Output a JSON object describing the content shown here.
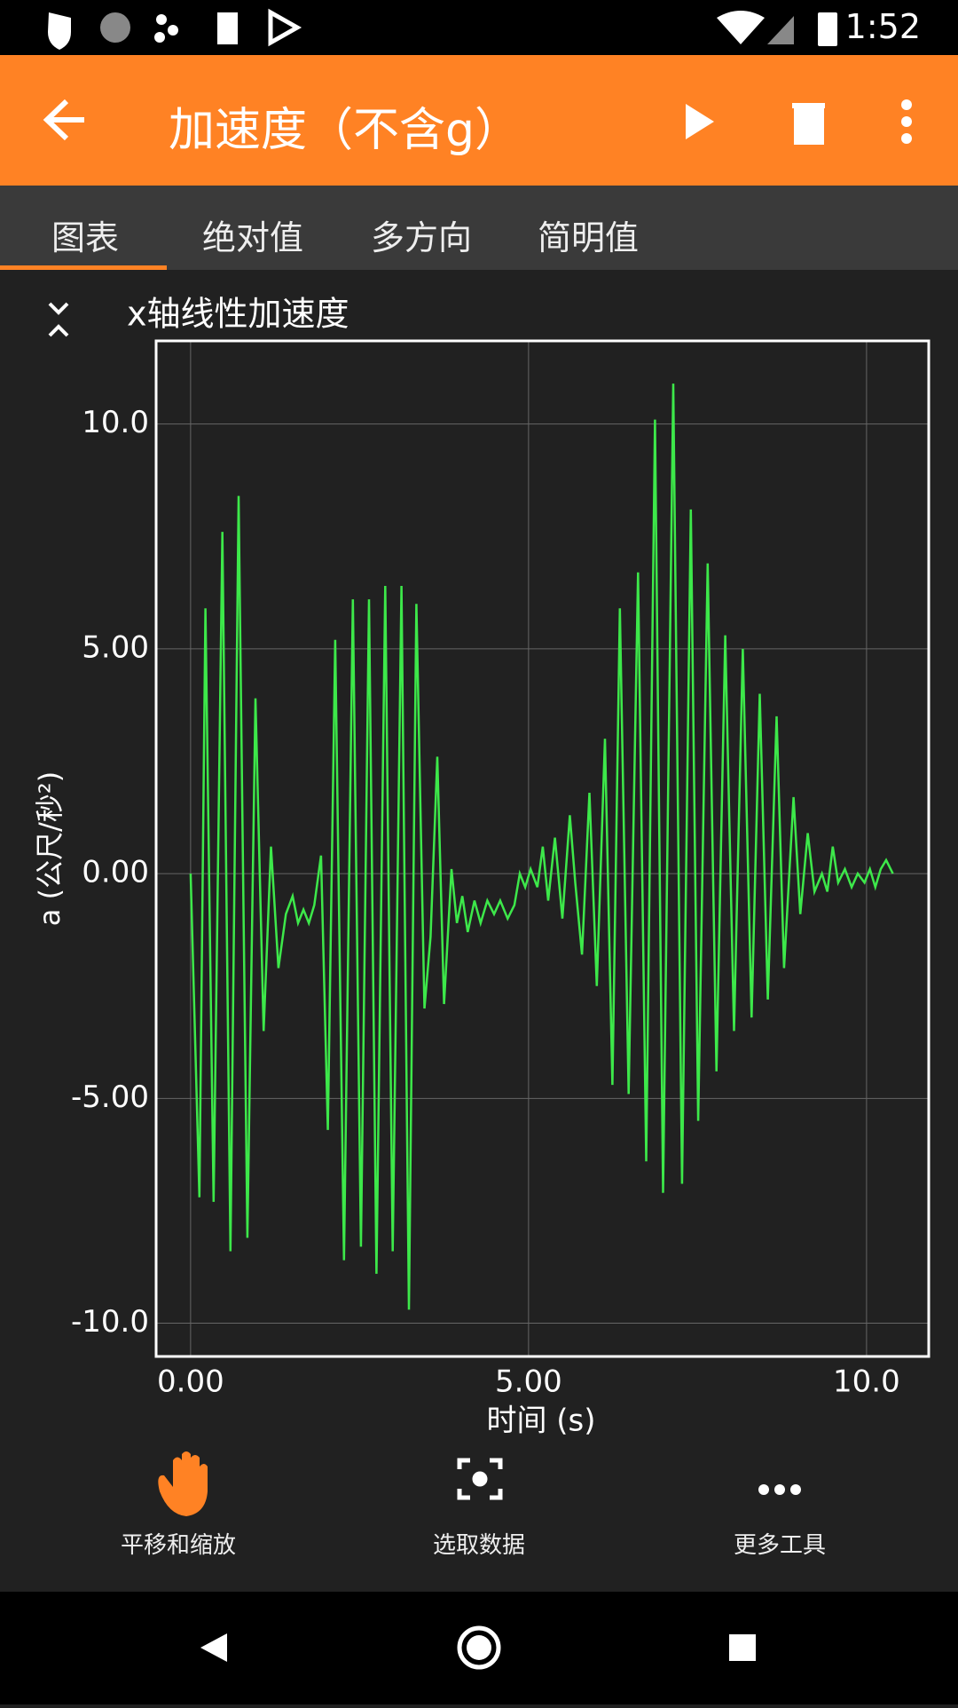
{
  "status_bar": {
    "time": "1:52"
  },
  "app_bar": {
    "title": "加速度（不含g）"
  },
  "tabs": [
    "图表",
    "绝对值",
    "多方向",
    "简明值"
  ],
  "chart_data": {
    "type": "line",
    "title": "x轴线性加速度",
    "x_label": "时间 (s)",
    "y_label": "a (公尺/秒²)",
    "color": "#3de84a",
    "grid": true,
    "xlim": [
      -0.51,
      10.92
    ],
    "ylim": [
      -10.74,
      11.85
    ],
    "xticks": [
      {
        "value": 0,
        "label": "0.00"
      },
      {
        "value": 5,
        "label": "5.00"
      },
      {
        "value": 10,
        "label": "10.0"
      }
    ],
    "yticks": [
      {
        "value": -10,
        "label": "-10.0"
      },
      {
        "value": -5,
        "label": "-5.00"
      },
      {
        "value": 0,
        "label": "0.00"
      },
      {
        "value": 5,
        "label": "5.00"
      },
      {
        "value": 10,
        "label": "10.0"
      }
    ],
    "x": [
      0,
      0.13,
      0.22,
      0.34,
      0.47,
      0.59,
      0.71,
      0.84,
      0.96,
      1.08,
      1.19,
      1.3,
      1.41,
      1.51,
      1.59,
      1.67,
      1.75,
      1.83,
      1.93,
      2.03,
      2.14,
      2.27,
      2.4,
      2.52,
      2.64,
      2.75,
      2.88,
      2.99,
      3.12,
      3.23,
      3.34,
      3.46,
      3.55,
      3.65,
      3.75,
      3.86,
      3.94,
      4.02,
      4.1,
      4.2,
      4.29,
      4.39,
      4.49,
      4.58,
      4.69,
      4.79,
      4.87,
      4.95,
      5.03,
      5.13,
      5.21,
      5.29,
      5.39,
      5.5,
      5.61,
      5.69,
      5.79,
      5.9,
      6.01,
      6.13,
      6.24,
      6.35,
      6.48,
      6.62,
      6.74,
      6.87,
      6.99,
      7.14,
      7.27,
      7.4,
      7.51,
      7.65,
      7.78,
      7.91,
      8.04,
      8.17,
      8.3,
      8.42,
      8.54,
      8.67,
      8.78,
      8.92,
      9.02,
      9.13,
      9.23,
      9.34,
      9.42,
      9.5,
      9.58,
      9.68,
      9.78,
      9.87,
      9.97,
      10.05,
      10.13,
      10.21,
      10.29,
      10.39
    ],
    "values": [
      0,
      -7.2,
      5.9,
      -7.3,
      7.6,
      -8.4,
      8.4,
      -8.1,
      3.9,
      -3.5,
      0.6,
      -2.1,
      -0.9,
      -0.5,
      -1.1,
      -0.8,
      -1.1,
      -0.7,
      0.4,
      -5.7,
      5.2,
      -8.6,
      6.1,
      -8.3,
      6.1,
      -8.9,
      6.4,
      -8.4,
      6.4,
      -9.7,
      6.0,
      -3.0,
      -1.4,
      2.6,
      -2.9,
      0.1,
      -1.1,
      -0.5,
      -1.3,
      -0.6,
      -1.1,
      -0.6,
      -0.9,
      -0.6,
      -1.0,
      -0.7,
      0.0,
      -0.3,
      0.1,
      -0.3,
      0.6,
      -0.6,
      0.8,
      -1.0,
      1.3,
      -0.2,
      -1.8,
      1.8,
      -2.5,
      3.0,
      -4.7,
      5.9,
      -4.9,
      6.7,
      -6.4,
      10.1,
      -7.1,
      10.9,
      -6.9,
      8.1,
      -5.5,
      6.9,
      -4.4,
      5.3,
      -3.5,
      5.0,
      -3.2,
      4.0,
      -2.8,
      3.5,
      -2.1,
      1.7,
      -0.9,
      0.9,
      -0.4,
      0.0,
      -0.4,
      0.6,
      -0.2,
      0.1,
      -0.3,
      0.0,
      -0.2,
      0.1,
      -0.3,
      0.1,
      0.3,
      0.0
    ]
  },
  "toolbar": [
    "平移和缩放",
    "选取数据",
    "更多工具"
  ]
}
